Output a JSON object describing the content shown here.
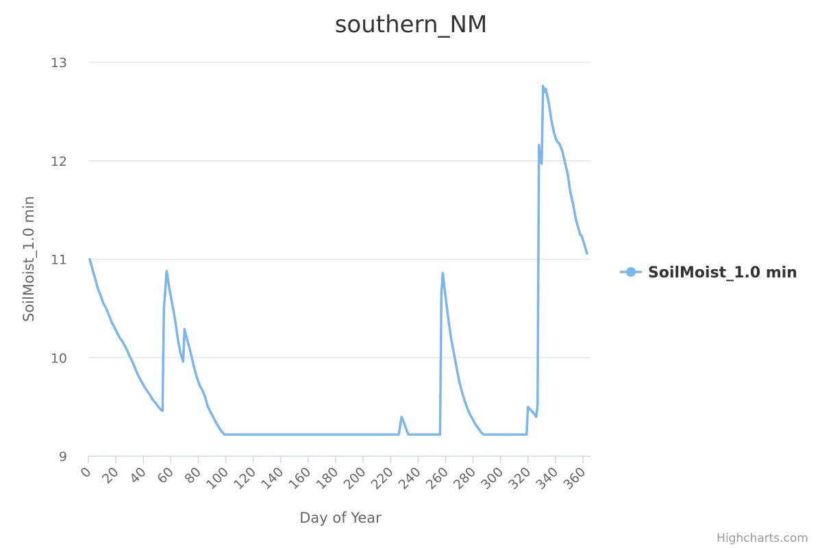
{
  "chart_data": {
    "type": "line",
    "title": "southern_NM",
    "xlabel": "Day of Year",
    "ylabel": "SoilMoist_1.0 min",
    "xlim": [
      0,
      366
    ],
    "ylim": [
      9,
      13
    ],
    "x_ticks": [
      0,
      20,
      40,
      60,
      80,
      100,
      120,
      140,
      160,
      180,
      200,
      220,
      240,
      260,
      280,
      300,
      320,
      340,
      360
    ],
    "y_ticks": [
      9,
      10,
      11,
      12,
      13
    ],
    "grid": true,
    "legend_position": "right",
    "color": "#7cb5ec",
    "series": [
      {
        "name": "SoilMoist_1.0 min",
        "points": [
          [
            1,
            11.0
          ],
          [
            3,
            10.9
          ],
          [
            5,
            10.8
          ],
          [
            7,
            10.7
          ],
          [
            9,
            10.63
          ],
          [
            11,
            10.55
          ],
          [
            13,
            10.5
          ],
          [
            15,
            10.43
          ],
          [
            17,
            10.36
          ],
          [
            19,
            10.31
          ],
          [
            21,
            10.25
          ],
          [
            23,
            10.2
          ],
          [
            25,
            10.16
          ],
          [
            27,
            10.11
          ],
          [
            29,
            10.05
          ],
          [
            31,
            9.99
          ],
          [
            33,
            9.93
          ],
          [
            35,
            9.86
          ],
          [
            37,
            9.8
          ],
          [
            39,
            9.75
          ],
          [
            41,
            9.7
          ],
          [
            43,
            9.66
          ],
          [
            45,
            9.62
          ],
          [
            47,
            9.57
          ],
          [
            49,
            9.54
          ],
          [
            51,
            9.5
          ],
          [
            53,
            9.47
          ],
          [
            54,
            9.46
          ],
          [
            55,
            10.5
          ],
          [
            57,
            10.88
          ],
          [
            59,
            10.7
          ],
          [
            61,
            10.55
          ],
          [
            63,
            10.4
          ],
          [
            65,
            10.2
          ],
          [
            67,
            10.05
          ],
          [
            69,
            9.96
          ],
          [
            70,
            10.29
          ],
          [
            72,
            10.18
          ],
          [
            74,
            10.08
          ],
          [
            75,
            10.02
          ],
          [
            77,
            9.9
          ],
          [
            79,
            9.8
          ],
          [
            81,
            9.72
          ],
          [
            83,
            9.67
          ],
          [
            85,
            9.6
          ],
          [
            87,
            9.5
          ],
          [
            90,
            9.42
          ],
          [
            93,
            9.34
          ],
          [
            96,
            9.27
          ],
          [
            99,
            9.22
          ],
          [
            110,
            9.22
          ],
          [
            130,
            9.22
          ],
          [
            150,
            9.22
          ],
          [
            170,
            9.22
          ],
          [
            190,
            9.22
          ],
          [
            210,
            9.22
          ],
          [
            226,
            9.22
          ],
          [
            228,
            9.4
          ],
          [
            230,
            9.33
          ],
          [
            232,
            9.25
          ],
          [
            233,
            9.22
          ],
          [
            240,
            9.22
          ],
          [
            256,
            9.22
          ],
          [
            257,
            10.65
          ],
          [
            258,
            10.86
          ],
          [
            260,
            10.62
          ],
          [
            262,
            10.4
          ],
          [
            264,
            10.2
          ],
          [
            266,
            10.05
          ],
          [
            268,
            9.9
          ],
          [
            270,
            9.76
          ],
          [
            272,
            9.65
          ],
          [
            274,
            9.56
          ],
          [
            276,
            9.48
          ],
          [
            278,
            9.42
          ],
          [
            280,
            9.37
          ],
          [
            282,
            9.32
          ],
          [
            284,
            9.28
          ],
          [
            286,
            9.24
          ],
          [
            288,
            9.22
          ],
          [
            300,
            9.22
          ],
          [
            315,
            9.22
          ],
          [
            319,
            9.22
          ],
          [
            320,
            9.5
          ],
          [
            322,
            9.47
          ],
          [
            324,
            9.44
          ],
          [
            326,
            9.4
          ],
          [
            327,
            9.52
          ],
          [
            328,
            12.16
          ],
          [
            329,
            12.0
          ],
          [
            330,
            11.97
          ],
          [
            331,
            12.76
          ],
          [
            332,
            12.7
          ],
          [
            333,
            12.73
          ],
          [
            335,
            12.6
          ],
          [
            337,
            12.42
          ],
          [
            339,
            12.28
          ],
          [
            341,
            12.2
          ],
          [
            343,
            12.17
          ],
          [
            345,
            12.1
          ],
          [
            347,
            11.98
          ],
          [
            349,
            11.86
          ],
          [
            351,
            11.67
          ],
          [
            353,
            11.55
          ],
          [
            355,
            11.4
          ],
          [
            357,
            11.3
          ],
          [
            358,
            11.25
          ],
          [
            359,
            11.24
          ],
          [
            361,
            11.15
          ],
          [
            363,
            11.06
          ]
        ]
      }
    ]
  },
  "credits": "Highcharts.com"
}
